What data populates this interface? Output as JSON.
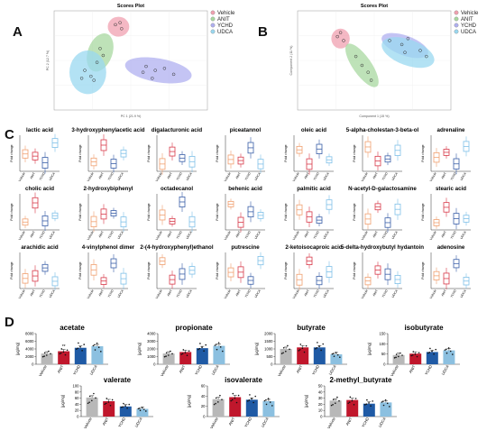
{
  "groups": [
    "Vehicle",
    "ANIT",
    "YCHD",
    "UDCA"
  ],
  "colors": {
    "box": [
      "#f0a070",
      "#d83a4a",
      "#3a5fa8",
      "#7fc0e8"
    ],
    "bar": [
      "#b8b8b8",
      "#c0172c",
      "#1f5aa5",
      "#8cc0e0"
    ],
    "ellipse": [
      "#f0a0b0",
      "#a8d8a0",
      "#b0b0f0",
      "#9ad8f0"
    ]
  },
  "panel_letters": [
    "A",
    "B",
    "C",
    "D"
  ],
  "panelA": {
    "title": "Scores Plot",
    "xlabel": "PC 1 (21.9 %)",
    "ylabel": "PC 2 (12.7 %)",
    "legend": [
      "Vehicle",
      "ANIT",
      "YCHD",
      "UDCA"
    ]
  },
  "panelB": {
    "title": "Scores Plot",
    "xlabel": "Component 1 (15 %)",
    "ylabel": "Component 2 (11 %)",
    "legend": [
      "Vehicle",
      "ANIT",
      "YCHD",
      "UDCA"
    ]
  },
  "panelC": {
    "ylabel": "Fold change",
    "metabolites": [
      "lactic acid",
      "3-hydroxyphenylacetic acid",
      "digalacturonic acid",
      "piceatannol",
      "oleic acid",
      "5-alpha-cholestan-3-beta-ol",
      "adrenaline",
      "cholic acid",
      "2-hydroxybiphenyl",
      "octadecanol",
      "behenic acid",
      "palmitic acid",
      "N-acetyl-D-galactosamine",
      "stearic acid",
      "arachidic acid",
      "4-vinylphenol dimer",
      "2-(4-hydroxyphenyl)ethanol",
      "putrescine",
      "2-ketoisocaproic acid",
      "5-delta-hydroxybutyl hydantoin",
      "adenosine"
    ]
  },
  "chart_data": [
    {
      "type": "bar",
      "title": "acetate",
      "ylabel": "(μg/mg)",
      "categories": [
        "Vehicle",
        "ANIT",
        "YCHD",
        "UDCA"
      ],
      "values": [
        2800,
        3400,
        4300,
        4700
      ],
      "ylim": [
        0,
        8000
      ],
      "yticks": [
        "0",
        "2000",
        "4000",
        "6000",
        "8000"
      ],
      "annotations": [
        "",
        "**",
        "",
        ""
      ]
    },
    {
      "type": "bar",
      "title": "propionate",
      "ylabel": "(μg/mg)",
      "categories": [
        "Vehicle",
        "ANIT",
        "YCHD",
        "UDCA"
      ],
      "values": [
        1400,
        1600,
        2100,
        2400
      ],
      "ylim": [
        0,
        4000
      ],
      "yticks": [
        "0",
        "1000",
        "2000",
        "3000",
        "4000"
      ],
      "annotations": [
        "",
        "",
        "",
        ""
      ]
    },
    {
      "type": "bar",
      "title": "butyrate",
      "ylabel": "(μg/mg)",
      "categories": [
        "Vehicle",
        "ANIT",
        "YCHD",
        "UDCA"
      ],
      "values": [
        1000,
        1100,
        1100,
        650
      ],
      "ylim": [
        0,
        2000
      ],
      "yticks": [
        "0",
        "500",
        "1000",
        "1500",
        "2000"
      ],
      "annotations": [
        "",
        "",
        "",
        ""
      ]
    },
    {
      "type": "bar",
      "title": "isobutyrate",
      "ylabel": "(μg/mg)",
      "categories": [
        "Vehicle",
        "ANIT",
        "YCHD",
        "UDCA"
      ],
      "values": [
        45,
        52,
        60,
        68
      ],
      "ylim": [
        0,
        150
      ],
      "yticks": [
        "0",
        "50",
        "100",
        "150"
      ],
      "annotations": [
        "",
        "",
        "",
        ""
      ]
    },
    {
      "type": "bar",
      "title": "valerate",
      "ylabel": "(μg/mg)",
      "categories": [
        "Vehicle",
        "ANIT",
        "YCHD",
        "UDCA"
      ],
      "values": [
        62,
        50,
        33,
        25
      ],
      "ylim": [
        0,
        100
      ],
      "yticks": [
        "0",
        "20",
        "40",
        "60",
        "80",
        "100"
      ],
      "annotations": [
        "",
        "",
        "",
        ""
      ]
    },
    {
      "type": "bar",
      "title": "isovalerate",
      "ylabel": "(μg/mg)",
      "categories": [
        "Vehicle",
        "ANIT",
        "YCHD",
        "UDCA"
      ],
      "values": [
        34,
        38,
        33,
        30
      ],
      "ylim": [
        0,
        60
      ],
      "yticks": [
        "0",
        "20",
        "40",
        "60"
      ],
      "annotations": [
        "",
        "",
        "",
        ""
      ]
    },
    {
      "type": "bar",
      "title": "2-methyl_butyrate",
      "ylabel": "(μg/mg)",
      "categories": [
        "Vehicle",
        "ANIT",
        "YCHD",
        "UDCA"
      ],
      "values": [
        26,
        27,
        21,
        23
      ],
      "ylim": [
        0,
        50
      ],
      "yticks": [
        "0",
        "10",
        "20",
        "30",
        "40",
        "50"
      ],
      "annotations": [
        "",
        "",
        "",
        ""
      ]
    }
  ]
}
